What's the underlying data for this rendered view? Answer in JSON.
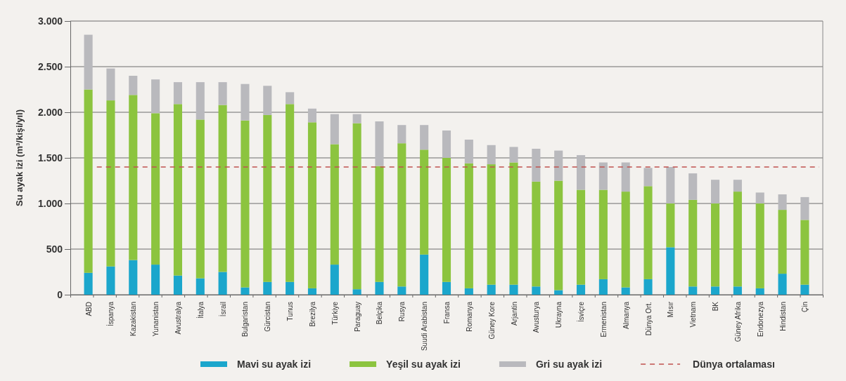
{
  "chart_data": {
    "type": "bar",
    "stacked": true,
    "ylabel": "Su ayak izi (m³/kişi/yıl)",
    "categories": [
      "ABD",
      "İspanya",
      "Kazakistan",
      "Yunanistan",
      "Avustralya",
      "İtalya",
      "İsrail",
      "Bulgaristan",
      "Gürcistan",
      "Tunus",
      "Brezilya",
      "Türkiye",
      "Paraguay",
      "Belçika",
      "Rusya",
      "Suudi Arabistan",
      "Fransa",
      "Romanya",
      "Güney Kore",
      "Arjantin",
      "Avusturya",
      "Ukrayna",
      "İsviçre",
      "Ermenistan",
      "Almanya",
      "Dünya Ort.",
      "Mısır",
      "Vietnam",
      "BK",
      "Güney Afrika",
      "Endonezya",
      "Hindistan",
      "Çin"
    ],
    "series": [
      {
        "name": "Mavi su ayak izi",
        "color": "#1ba6cc",
        "values": [
          240,
          310,
          380,
          330,
          210,
          180,
          250,
          80,
          140,
          140,
          70,
          330,
          60,
          140,
          90,
          440,
          140,
          70,
          110,
          110,
          90,
          50,
          110,
          170,
          80,
          170,
          520,
          90,
          90,
          90,
          70,
          230,
          110
        ]
      },
      {
        "name": "Yeşil su ayak izi",
        "color": "#8cc43f",
        "values": [
          2010,
          1820,
          1810,
          1660,
          1880,
          1740,
          1830,
          1830,
          1830,
          1950,
          1820,
          1320,
          1820,
          1270,
          1570,
          1150,
          1360,
          1370,
          1320,
          1340,
          1150,
          1200,
          1040,
          980,
          1050,
          1020,
          480,
          950,
          910,
          1040,
          930,
          700,
          710
        ]
      },
      {
        "name": "Gri su ayak izi",
        "color": "#b9b9bd",
        "values": [
          600,
          350,
          210,
          370,
          240,
          410,
          250,
          400,
          320,
          130,
          150,
          330,
          100,
          490,
          200,
          270,
          300,
          260,
          210,
          170,
          360,
          330,
          380,
          300,
          320,
          200,
          400,
          290,
          260,
          130,
          120,
          170,
          250
        ]
      }
    ],
    "ylim": [
      0,
      3000
    ],
    "yticks": [
      0,
      500,
      {
        "value": 1000,
        "label": "1.000"
      },
      {
        "value": 1500,
        "label": "1.500"
      },
      {
        "value": 2000,
        "label": "2.000"
      },
      {
        "value": 2500,
        "label": "2.500"
      },
      {
        "value": 3000,
        "label": "3.000"
      }
    ],
    "ref_lines": [
      {
        "axis": "y",
        "value": 1400,
        "label": "Dünya ortalaması",
        "color": "#c0504d",
        "line_style": "dashed"
      }
    ],
    "grid": "y",
    "legend": "bottom"
  }
}
